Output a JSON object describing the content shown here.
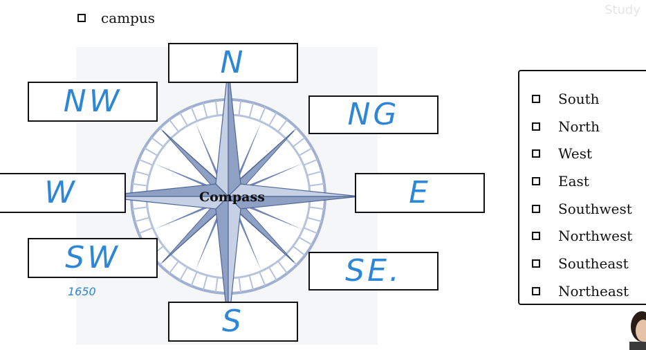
{
  "top_option": {
    "label": "campus"
  },
  "compass": {
    "label": "Compass"
  },
  "direction_boxes": {
    "n": {
      "answer": "N"
    },
    "ne": {
      "answer": "NG"
    },
    "e": {
      "answer": "E"
    },
    "se": {
      "answer": "SE."
    },
    "s": {
      "answer": "S"
    },
    "sw": {
      "answer": "SW",
      "note": "1650"
    },
    "w": {
      "answer": "W"
    },
    "nw": {
      "answer": "NW"
    }
  },
  "legend": {
    "items": [
      "South",
      "North",
      "West",
      "East",
      "Southwest",
      "Northwest",
      "Southeast",
      "Northeast"
    ]
  },
  "colors": {
    "handwriting": "#2d86d6",
    "compass_fill": "#8ea0c4",
    "compass_dark": "#4f6594",
    "compass_ring": "#b6c3dc"
  },
  "watermark": {
    "text": "Study"
  }
}
